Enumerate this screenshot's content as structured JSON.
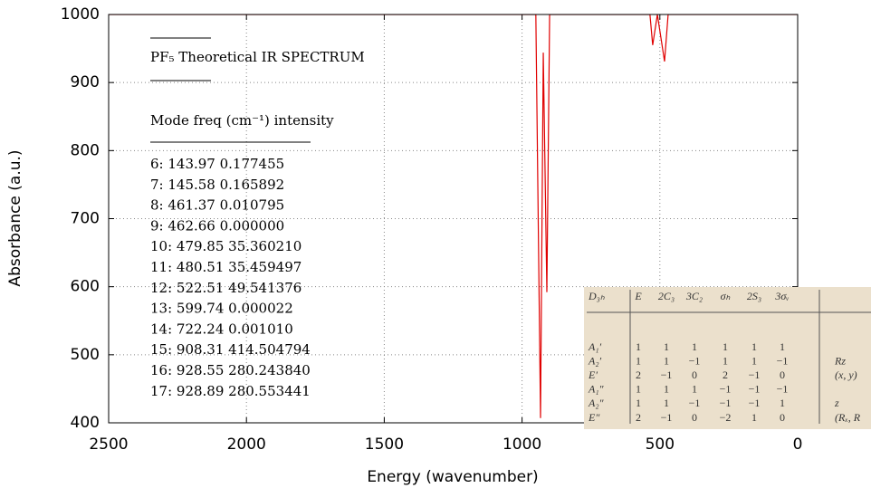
{
  "chart_data": {
    "type": "line",
    "x_label": "Energy (wavenumber)",
    "y_label": "Absorbance (a.u.)",
    "xlim": [
      2500,
      0
    ],
    "ylim": [
      400,
      1000
    ],
    "xticks": [
      2500,
      2000,
      1500,
      1000,
      500,
      0
    ],
    "yticks": [
      400,
      500,
      600,
      700,
      800,
      900,
      1000
    ],
    "grid": true,
    "x": [
      2500,
      950,
      933,
      923,
      910,
      900,
      536,
      526,
      509,
      483,
      470,
      0
    ],
    "series": [
      {
        "color": "#e00000",
        "values": [
          1000,
          1000,
          407,
          944,
          592,
          1000,
          1000,
          955,
          1000,
          931,
          1000,
          1000
        ]
      }
    ],
    "annotations": {
      "title": "PF₅ Theoretical IR SPECTRUM",
      "header": "Mode freq (cm⁻¹) intensity",
      "lines": [
        "6: 143.97 0.177455",
        "7: 145.58 0.165892",
        "8: 461.37 0.010795",
        "9: 462.66 0.000000",
        "10: 479.85 35.360210",
        "11: 480.51 35.459497",
        "12: 522.51 49.541376",
        "13: 599.74 0.000022",
        "14: 722.24 0.001010",
        "15: 908.31 414.504794",
        "16: 928.55 280.243840",
        "17: 928.89 280.553441"
      ]
    }
  },
  "character_table": {
    "header": [
      "D₃ₕ",
      "E",
      "2C₃",
      "3C₂",
      "σₕ",
      "2S₃",
      "3σᵥ"
    ],
    "rows": [
      [
        "A₁′",
        "1",
        "1",
        "1",
        "1",
        "1",
        "1"
      ],
      [
        "A₂′",
        "1",
        "1",
        "−1",
        "1",
        "1",
        "−1",
        "Rz"
      ],
      [
        "E′",
        "2",
        "−1",
        "0",
        "2",
        "−1",
        "0",
        "(x, y)"
      ],
      [
        "A₁″",
        "1",
        "1",
        "1",
        "−1",
        "−1",
        "−1"
      ],
      [
        "A₂″",
        "1",
        "1",
        "−1",
        "−1",
        "−1",
        "1",
        "z"
      ],
      [
        "E″",
        "2",
        "−1",
        "0",
        "−2",
        "1",
        "0",
        "(Rₓ, R"
      ]
    ]
  }
}
